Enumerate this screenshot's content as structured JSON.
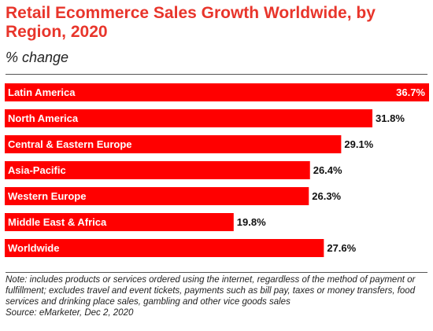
{
  "title": "Retail Ecommerce Sales Growth Worldwide, by Region, 2020",
  "subtitle": "% change",
  "note": "Note: includes products or services ordered using the internet, regardless of the method of payment or fulfillment; excludes travel and event tickets, payments such as bill pay, taxes or money transfers, food services and drinking place sales, gambling and other vice goods sales",
  "source": "Source: eMarketer, Dec 2, 2020",
  "colors": {
    "bar": "#ff0000",
    "title": "#e8352b"
  },
  "chart_data": {
    "type": "bar",
    "orientation": "horizontal",
    "title": "Retail Ecommerce Sales Growth Worldwide, by Region, 2020",
    "subtitle": "% change",
    "categories": [
      "Latin America",
      "North America",
      "Central & Eastern Europe",
      "Asia-Pacific",
      "Western Europe",
      "Middle East & Africa",
      "Worldwide"
    ],
    "values": [
      36.7,
      31.8,
      29.1,
      26.4,
      26.3,
      19.8,
      27.6
    ],
    "value_labels": [
      "36.7%",
      "31.8%",
      "29.1%",
      "26.4%",
      "26.3%",
      "19.8%",
      "27.6%"
    ],
    "grid": false,
    "legend": "none"
  }
}
